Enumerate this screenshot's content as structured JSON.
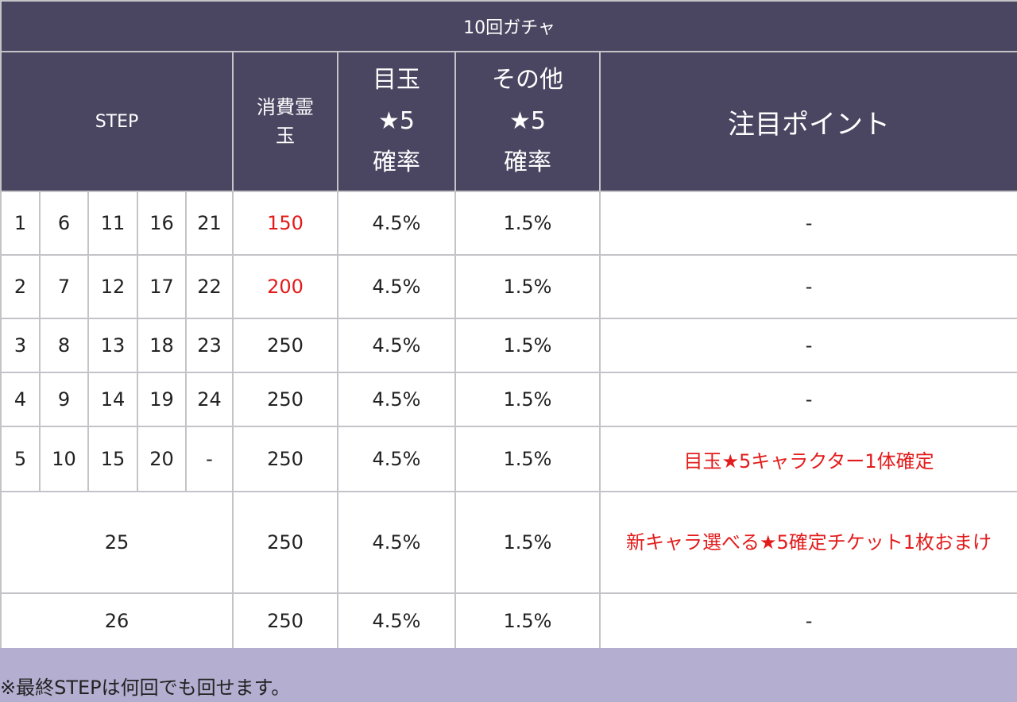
{
  "table": {
    "title": "10回ガチャ",
    "headers": {
      "step": "STEP",
      "cost": [
        "消費霊",
        "玉"
      ],
      "featured_rate": [
        "目玉",
        "★5",
        "確率"
      ],
      "other_rate": [
        "その他",
        "★5",
        "確率"
      ],
      "point": "注目ポイント"
    },
    "step_rows": [
      {
        "steps": [
          "1",
          "6",
          "11",
          "16",
          "21"
        ],
        "cost": "150",
        "featured": "4.5%",
        "other": "1.5%",
        "point": "-"
      },
      {
        "steps": [
          "2",
          "7",
          "12",
          "17",
          "22"
        ],
        "cost": "200",
        "featured": "4.5%",
        "other": "1.5%",
        "point": "-"
      },
      {
        "steps": [
          "3",
          "8",
          "13",
          "18",
          "23"
        ],
        "cost": "250",
        "featured": "4.5%",
        "other": "1.5%",
        "point": "-"
      },
      {
        "steps": [
          "4",
          "9",
          "14",
          "19",
          "24"
        ],
        "cost": "250",
        "featured": "4.5%",
        "other": "1.5%",
        "point": "-"
      },
      {
        "steps": [
          "5",
          "10",
          "15",
          "20",
          "-"
        ],
        "cost": "250",
        "featured": "4.5%",
        "other": "1.5%",
        "point": "目玉★5キャラクター1体確定"
      }
    ],
    "single_rows": [
      {
        "step": "25",
        "cost": "250",
        "featured": "4.5%",
        "other": "1.5%",
        "point": "新キャラ選べる★5確定チケット1枚おまけ"
      },
      {
        "step": "26",
        "cost": "250",
        "featured": "4.5%",
        "other": "1.5%",
        "point": "-"
      }
    ]
  },
  "footnote": "※最終STEPは何回でも回せます。",
  "colors": {
    "header_bg": "#4a4560",
    "footer_bg": "#b4aed0",
    "highlight": "#e31b1b"
  }
}
